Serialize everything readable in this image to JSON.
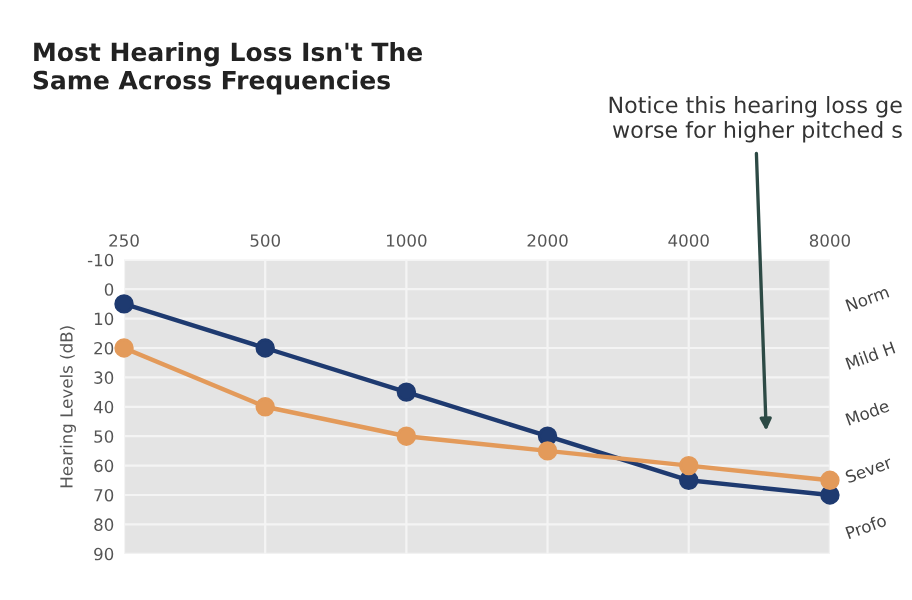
{
  "chart_data": {
    "type": "line",
    "title": "Most Hearing Loss Isn't The\nSame Across Frequencies",
    "ylabel": "Hearing Levels (dB)",
    "categories": [
      "250",
      "500",
      "1000",
      "2000",
      "4000",
      "8000"
    ],
    "series": [
      {
        "color": "#1e3a70",
        "values": [
          5,
          20,
          35,
          50,
          65,
          70
        ]
      },
      {
        "color": "#e39a5a",
        "values": [
          20,
          40,
          50,
          55,
          60,
          65
        ]
      }
    ],
    "ylim": [
      90,
      -10
    ],
    "yticks": [
      -10,
      0,
      10,
      20,
      30,
      40,
      50,
      60,
      70,
      80,
      90
    ],
    "grid": true,
    "marker": "circle",
    "line_style": "solid",
    "annotations": [
      "Notice this hearing loss ge\nworse for higher pitched s",
      "Norm",
      "Mild H",
      "Mode",
      "Sever",
      "Profo"
    ]
  }
}
